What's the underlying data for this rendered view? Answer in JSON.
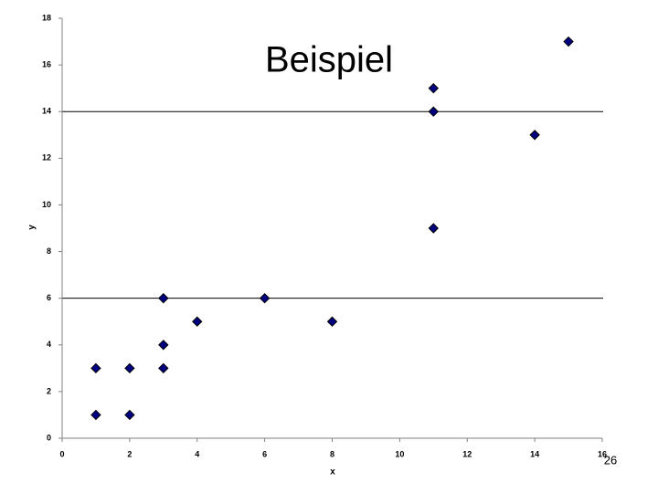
{
  "chart_data": {
    "type": "scatter",
    "title": "Beispiel",
    "x_label": "x",
    "y_label": "y",
    "x": [
      1,
      1,
      2,
      2,
      3,
      3,
      3,
      4,
      6,
      8,
      11,
      11,
      11,
      14,
      15
    ],
    "values": [
      3,
      1,
      3,
      1,
      6,
      4,
      3,
      5,
      6,
      5,
      15,
      14,
      9,
      13,
      17
    ],
    "color": "#000080",
    "xlim": [
      0,
      16
    ],
    "xticks": [
      0,
      2,
      4,
      6,
      8,
      10,
      12,
      14,
      16
    ],
    "ylim": [
      0,
      18
    ],
    "yticks": [
      0,
      2,
      4,
      6,
      8,
      10,
      12,
      14,
      16,
      18
    ],
    "hlines": [
      6,
      14
    ]
  },
  "page_number": "26"
}
